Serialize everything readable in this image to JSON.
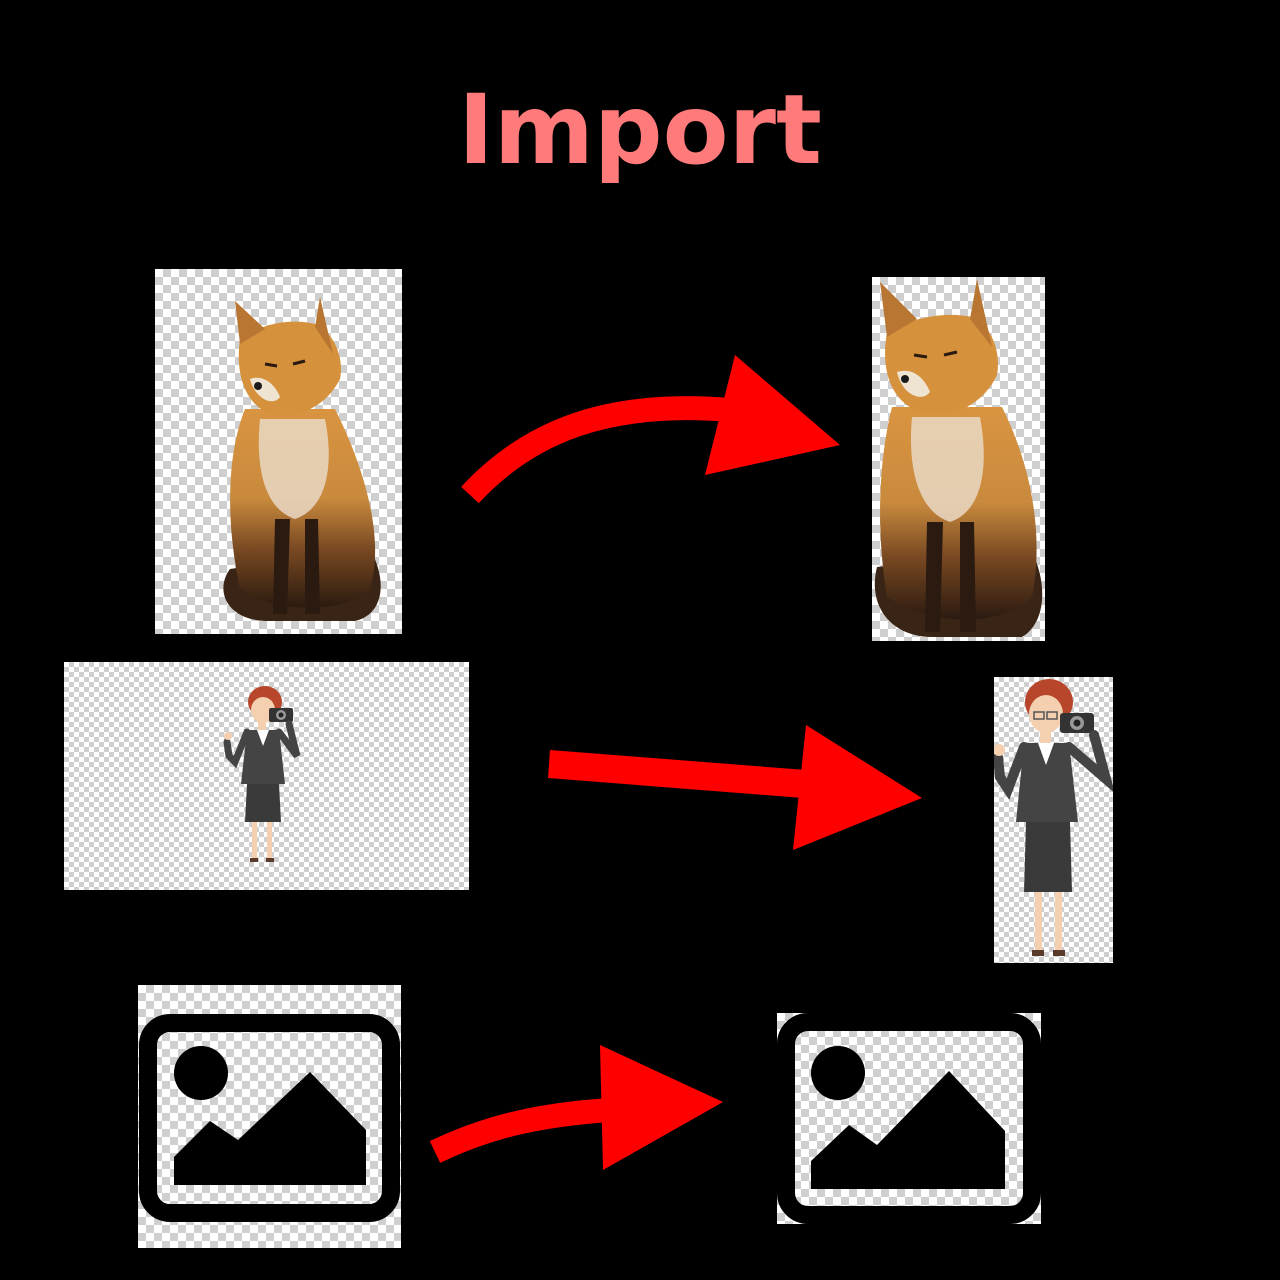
{
  "title": "Import",
  "colors": {
    "background": "#000000",
    "title": "#ff7a7a",
    "arrow": "#ff0000"
  },
  "rows": [
    {
      "source_image": "fox-sitting-transparent",
      "target_image": "fox-sitting-cropped"
    },
    {
      "source_image": "woman-with-camera-transparent-wide",
      "target_image": "woman-with-camera-cropped"
    },
    {
      "source_image": "image-placeholder-icon",
      "target_image": "image-placeholder-icon-cropped"
    }
  ]
}
